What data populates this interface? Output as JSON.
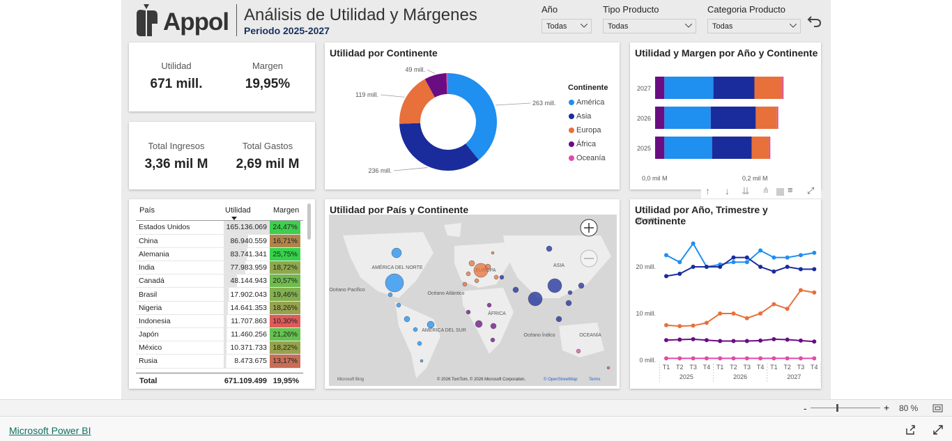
{
  "header": {
    "logo_text": "Appol",
    "title": "Análisis de Utilidad y Márgenes",
    "subtitle": "Periodo 2025-2027"
  },
  "slicers": [
    {
      "label": "Año",
      "value": "Todas"
    },
    {
      "label": "Tipo Producto",
      "value": "Todas"
    },
    {
      "label": "Categoria Producto",
      "value": "Todas"
    }
  ],
  "kpis": {
    "utilidad_label": "Utilidad",
    "utilidad_value": "671 mill.",
    "margen_label": "Margen",
    "margen_value": "19,95%",
    "ingresos_label": "Total Ingresos",
    "ingresos_value": "3,36 mil M",
    "gastos_label": "Total Gastos",
    "gastos_value": "2,69 mil M"
  },
  "table": {
    "headers": [
      "País",
      "Utilidad",
      "Margen"
    ],
    "rows": [
      {
        "pais": "Estados Unidos",
        "utilidad": "165.136.069",
        "margen": "24,47%",
        "frac": 1.0,
        "color": "#3ecf4c"
      },
      {
        "pais": "China",
        "utilidad": "86.940.559",
        "margen": "16,71%",
        "frac": 0.53,
        "color": "#b0854a"
      },
      {
        "pais": "Alemania",
        "utilidad": "83.741.341",
        "margen": "25,75%",
        "frac": 0.51,
        "color": "#35d34a"
      },
      {
        "pais": "India",
        "utilidad": "77.983.959",
        "margen": "18,72%",
        "frac": 0.47,
        "color": "#8fa84e"
      },
      {
        "pais": "Canadá",
        "utilidad": "48.144.943",
        "margen": "20,57%",
        "frac": 0.29,
        "color": "#70bb4e"
      },
      {
        "pais": "Brasil",
        "utilidad": "17.902.043",
        "margen": "19,46%",
        "frac": 0.11,
        "color": "#82b04e"
      },
      {
        "pais": "Nigeria",
        "utilidad": "14.641.353",
        "margen": "18,26%",
        "frac": 0.09,
        "color": "#97a24e"
      },
      {
        "pais": "Indonesia",
        "utilidad": "11.707.863",
        "margen": "10,30%",
        "frac": 0.07,
        "color": "#e05a5a"
      },
      {
        "pais": "Japón",
        "utilidad": "11.460.256",
        "margen": "21,26%",
        "frac": 0.07,
        "color": "#65c24e"
      },
      {
        "pais": "México",
        "utilidad": "10.371.733",
        "margen": "18,22%",
        "frac": 0.06,
        "color": "#97a24e"
      },
      {
        "pais": "Rusia",
        "utilidad": "8.473.675",
        "margen": "13,17%",
        "frac": 0.05,
        "color": "#c86e56"
      }
    ],
    "total_label": "Total",
    "total_utilidad": "671.109.499",
    "total_margen": "19,95%"
  },
  "donut": {
    "title": "Utilidad por Continente",
    "legend_title": "Continente",
    "slices": [
      {
        "name": "América",
        "label": "263 mill.",
        "value": 263,
        "color": "#1f8ff0"
      },
      {
        "name": "Asia",
        "label": "236 mill.",
        "value": 236,
        "color": "#1a2c9c"
      },
      {
        "name": "Europa",
        "label": "119 mill.",
        "value": 119,
        "color": "#e8703a"
      },
      {
        "name": "África",
        "label": "49 mill.",
        "value": 49,
        "color": "#6a0d83"
      },
      {
        "name": "Oceanía",
        "label": "",
        "value": 4,
        "color": "#e04ca4"
      }
    ]
  },
  "bar": {
    "title": "Utilidad y Margen por Año y Continente",
    "axis": [
      "0,0 mil M",
      "0,2 mil M"
    ],
    "years": [
      {
        "y": "2027",
        "v": [
          3.5,
          18.5,
          15.5,
          10.5,
          0.5
        ]
      },
      {
        "y": "2026",
        "v": [
          3.5,
          17.5,
          17,
          8,
          0.5
        ]
      },
      {
        "y": "2025",
        "v": [
          3.5,
          18,
          15,
          6.5,
          0.5
        ]
      }
    ]
  },
  "map": {
    "title": "Utilidad por País y Continente",
    "labels": [
      "AMÉRICA DEL NORTE",
      "EUROPA",
      "ASIA",
      "Océano Pacífico",
      "Océano Atlántico",
      "ÁFRICA",
      "AMÉRICA DEL SUR",
      "Océano Índico",
      "OCEANÍA"
    ],
    "attribution": "© 2026 TomTom, © 2026 Microsoft Corporation,",
    "osm": "© OpenStreetMap",
    "terms": "Terms",
    "bing": "Microsoft Bing"
  },
  "line": {
    "title": "Utilidad por Año, Trimestre y Continente",
    "yticks": [
      "30 mill.",
      "20 mill.",
      "10 mill.",
      "0 mill."
    ],
    "quarters": [
      "T1",
      "T2",
      "T3",
      "T4",
      "T1",
      "T2",
      "T3",
      "T4",
      "T1",
      "T2",
      "T3",
      "T4"
    ],
    "years": [
      "2025",
      "2026",
      "2027"
    ],
    "series": [
      {
        "name": "América",
        "color": "#1f8ff0",
        "values": [
          22.5,
          21,
          25,
          20,
          20.5,
          21,
          21,
          23.5,
          22,
          22,
          22.5,
          23
        ]
      },
      {
        "name": "Asia",
        "color": "#1a2c9c",
        "values": [
          18,
          18.5,
          20,
          20,
          20,
          22,
          22,
          20,
          19,
          20,
          19.5,
          19.5
        ]
      },
      {
        "name": "Europa",
        "color": "#e8703a",
        "values": [
          7.5,
          7.3,
          7.4,
          8,
          10,
          10,
          9,
          10,
          12,
          11,
          15,
          14.5
        ]
      },
      {
        "name": "África",
        "color": "#6a0d83",
        "values": [
          4.3,
          4.4,
          4.5,
          4.3,
          4.1,
          4.1,
          4.1,
          4.2,
          4.5,
          4.4,
          4.2,
          4.0
        ]
      },
      {
        "name": "Oceanía",
        "color": "#e04ca4",
        "values": [
          0.4,
          0.4,
          0.4,
          0.4,
          0.4,
          0.4,
          0.4,
          0.4,
          0.4,
          0.4,
          0.4,
          0.4
        ]
      }
    ]
  },
  "status": {
    "zoom": "80 %"
  },
  "footer": {
    "link": "Microsoft Power BI"
  }
}
